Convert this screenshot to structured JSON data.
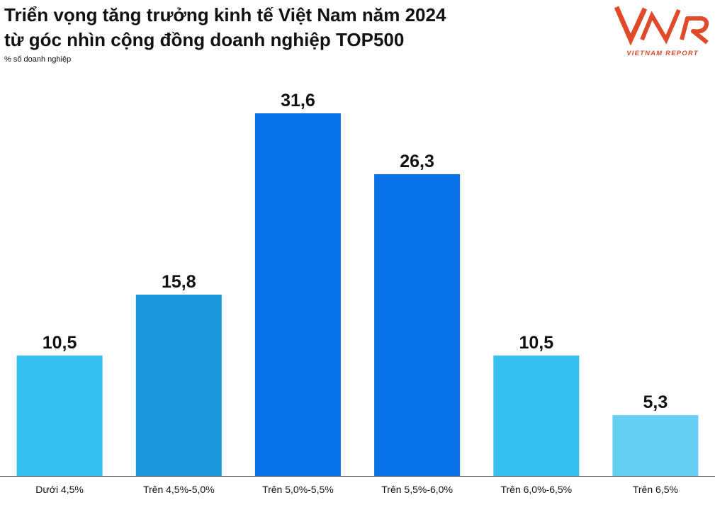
{
  "title_lines": [
    "Triển vọng tăng trưởng kinh tế Việt Nam năm 2024",
    "từ góc nhìn cộng đồng doanh nghiệp TOP500"
  ],
  "logo": {
    "mark": "VNR",
    "caption": "VIETNAM REPORT",
    "color": "#e04a2a"
  },
  "chart_data": {
    "type": "bar",
    "title": "Triển vọng tăng trưởng kinh tế Việt Nam năm 2024 từ góc nhìn cộng đồng doanh nghiệp TOP500",
    "ylabel": "% số doanh nghiệp",
    "xlabel": "",
    "categories": [
      "Dưới 4,5%",
      "Trên 4,5%-5,0%",
      "Trên 5,0%-5,5%",
      "Trên 5,5%-6,0%",
      "Trên 6,0%-6,5%",
      "Trên 6,5%"
    ],
    "values": [
      10.5,
      15.8,
      31.6,
      26.3,
      10.5,
      5.3
    ],
    "value_labels": [
      "10,5",
      "15,8",
      "31,6",
      "26,3",
      "10,5",
      "5,3"
    ],
    "colors": [
      "#36c0f0",
      "#1a96dc",
      "#0a73e8",
      "#0a73e8",
      "#36c0f0",
      "#66d0f4"
    ],
    "ylim": [
      0,
      31.6
    ],
    "grid": false,
    "legend": "none"
  }
}
